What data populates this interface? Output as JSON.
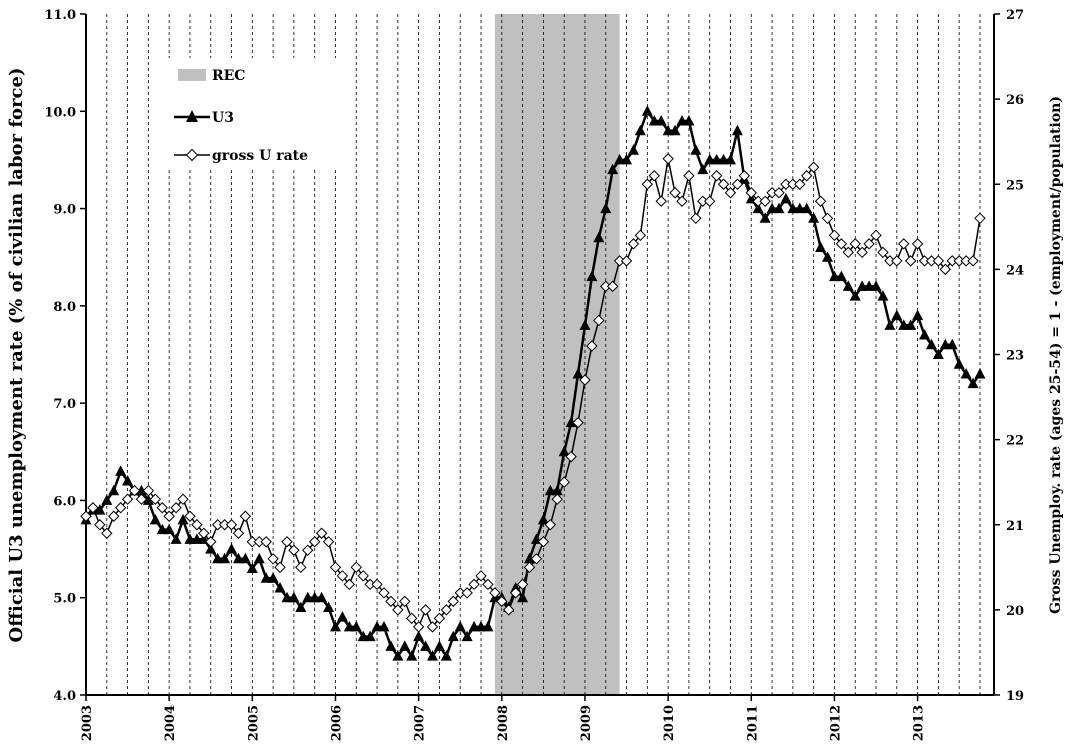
{
  "chart_data": {
    "type": "line",
    "xlabel": "",
    "ylabel_left": "Official U3 unemployment rate (% of civilian labor force)",
    "ylabel_right": "Gross Unemploy. rate (ages 25-54) = 1 - (employment/population)",
    "x_tick_labels": [
      "2003",
      "2004",
      "2005",
      "2006",
      "2007",
      "2008",
      "2009",
      "2010",
      "2011",
      "2012",
      "2013"
    ],
    "ylim_left": [
      4.0,
      11.0
    ],
    "ylim_right": [
      19,
      27
    ],
    "y_tick_labels_left": [
      "4.0",
      "5.0",
      "6.0",
      "7.0",
      "8.0",
      "9.0",
      "10.0",
      "11.0"
    ],
    "y_tick_labels_right": [
      "19",
      "20",
      "21",
      "22",
      "23",
      "24",
      "25",
      "26",
      "27"
    ],
    "grid": "vertical dashed",
    "legend": [
      "REC",
      "U3",
      "gross U rate"
    ],
    "legend_position": "top-left",
    "recession": {
      "label": "REC",
      "start": "2007-12",
      "end": "2009-06",
      "color": "#c0c0c0"
    },
    "series": [
      {
        "name": "U3",
        "axis": "left",
        "marker": "filled-triangle",
        "color": "#000000",
        "start": "2003-01",
        "values": [
          5.8,
          5.9,
          5.9,
          6.0,
          6.1,
          6.3,
          6.2,
          6.1,
          6.1,
          6.0,
          5.8,
          5.7,
          5.7,
          5.6,
          5.8,
          5.6,
          5.6,
          5.6,
          5.5,
          5.4,
          5.4,
          5.5,
          5.4,
          5.4,
          5.3,
          5.4,
          5.2,
          5.2,
          5.1,
          5.0,
          5.0,
          4.9,
          5.0,
          5.0,
          5.0,
          4.9,
          4.7,
          4.8,
          4.7,
          4.7,
          4.6,
          4.6,
          4.7,
          4.7,
          4.5,
          4.4,
          4.5,
          4.4,
          4.6,
          4.5,
          4.4,
          4.5,
          4.4,
          4.6,
          4.7,
          4.6,
          4.7,
          4.7,
          4.7,
          5.0,
          5.0,
          4.9,
          5.1,
          5.0,
          5.4,
          5.6,
          5.8,
          6.1,
          6.1,
          6.5,
          6.8,
          7.3,
          7.8,
          8.3,
          8.7,
          9.0,
          9.4,
          9.5,
          9.5,
          9.6,
          9.8,
          10.0,
          9.9,
          9.9,
          9.8,
          9.8,
          9.9,
          9.9,
          9.6,
          9.4,
          9.5,
          9.5,
          9.5,
          9.5,
          9.8,
          9.3,
          9.1,
          9.0,
          8.9,
          9.0,
          9.0,
          9.1,
          9.0,
          9.0,
          9.0,
          8.9,
          8.6,
          8.5,
          8.3,
          8.3,
          8.2,
          8.1,
          8.2,
          8.2,
          8.2,
          8.1,
          7.8,
          7.9,
          7.8,
          7.8,
          7.9,
          7.7,
          7.6,
          7.5,
          7.6,
          7.6,
          7.4,
          7.3,
          7.2,
          7.3
        ]
      },
      {
        "name": "gross U rate",
        "axis": "right",
        "marker": "open-diamond",
        "color": "#000000",
        "start": "2003-01",
        "values": [
          21.1,
          21.2,
          21.0,
          20.9,
          21.1,
          21.2,
          21.3,
          21.4,
          21.3,
          21.4,
          21.3,
          21.2,
          21.1,
          21.2,
          21.3,
          21.1,
          21.0,
          20.9,
          20.8,
          21.0,
          21.0,
          21.0,
          20.9,
          21.1,
          20.8,
          20.8,
          20.8,
          20.6,
          20.5,
          20.8,
          20.7,
          20.5,
          20.7,
          20.8,
          20.9,
          20.8,
          20.5,
          20.4,
          20.3,
          20.5,
          20.4,
          20.3,
          20.3,
          20.2,
          20.1,
          20.0,
          20.1,
          19.9,
          19.8,
          20.0,
          19.8,
          19.9,
          20.0,
          20.1,
          20.2,
          20.2,
          20.3,
          20.4,
          20.3,
          20.2,
          20.1,
          20.0,
          20.2,
          20.3,
          20.5,
          20.6,
          20.8,
          21.0,
          21.3,
          21.5,
          21.8,
          22.2,
          22.7,
          23.1,
          23.4,
          23.8,
          23.8,
          24.1,
          24.1,
          24.3,
          24.4,
          25.0,
          25.1,
          24.8,
          25.3,
          24.9,
          24.8,
          25.1,
          24.6,
          24.8,
          24.8,
          25.1,
          25.0,
          24.9,
          25.0,
          25.1,
          24.9,
          24.8,
          24.8,
          24.9,
          24.9,
          25.0,
          25.0,
          25.0,
          25.1,
          25.2,
          24.8,
          24.6,
          24.4,
          24.3,
          24.2,
          24.3,
          24.2,
          24.3,
          24.4,
          24.2,
          24.1,
          24.1,
          24.3,
          24.1,
          24.3,
          24.1,
          24.1,
          24.1,
          24.0,
          24.1,
          24.1,
          24.1,
          24.1,
          24.6
        ]
      }
    ]
  }
}
